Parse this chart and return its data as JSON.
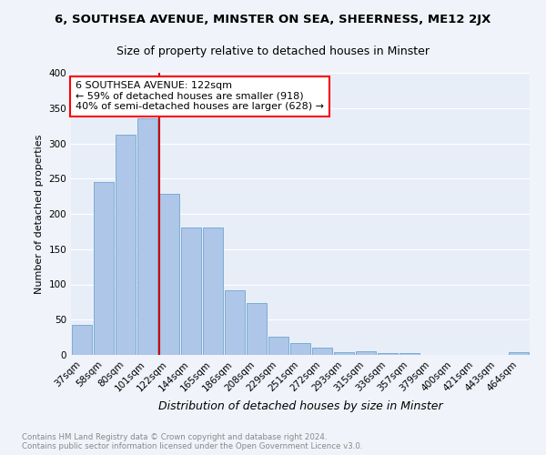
{
  "title": "6, SOUTHSEA AVENUE, MINSTER ON SEA, SHEERNESS, ME12 2JX",
  "subtitle": "Size of property relative to detached houses in Minster",
  "xlabel": "Distribution of detached houses by size in Minster",
  "ylabel": "Number of detached properties",
  "bar_labels": [
    "37sqm",
    "58sqm",
    "80sqm",
    "101sqm",
    "122sqm",
    "144sqm",
    "165sqm",
    "186sqm",
    "208sqm",
    "229sqm",
    "251sqm",
    "272sqm",
    "293sqm",
    "315sqm",
    "336sqm",
    "357sqm",
    "379sqm",
    "400sqm",
    "421sqm",
    "443sqm",
    "464sqm"
  ],
  "bar_values": [
    42,
    245,
    312,
    335,
    228,
    181,
    181,
    91,
    74,
    26,
    17,
    10,
    4,
    5,
    3,
    3,
    0,
    0,
    0,
    0,
    4
  ],
  "bar_color": "#aec6e8",
  "bar_edge_color": "#7aadd4",
  "red_line_index": 4,
  "annotation_title": "6 SOUTHSEA AVENUE: 122sqm",
  "annotation_line1": "← 59% of detached houses are smaller (918)",
  "annotation_line2": "40% of semi-detached houses are larger (628) →",
  "annotation_box_color": "white",
  "annotation_box_edge": "red",
  "red_line_color": "#cc0000",
  "footer_line1": "Contains HM Land Registry data © Crown copyright and database right 2024.",
  "footer_line2": "Contains public sector information licensed under the Open Government Licence v3.0.",
  "ylim": [
    0,
    400
  ],
  "yticks": [
    0,
    50,
    100,
    150,
    200,
    250,
    300,
    350,
    400
  ],
  "bg_color": "#f0f4fa",
  "plot_bg_color": "#e8eef8",
  "grid_color": "#ffffff",
  "title_fontsize": 9.5,
  "subtitle_fontsize": 9,
  "xlabel_fontsize": 9,
  "ylabel_fontsize": 8,
  "tick_fontsize": 7.5,
  "footer_fontsize": 6.2,
  "annotation_fontsize": 8
}
